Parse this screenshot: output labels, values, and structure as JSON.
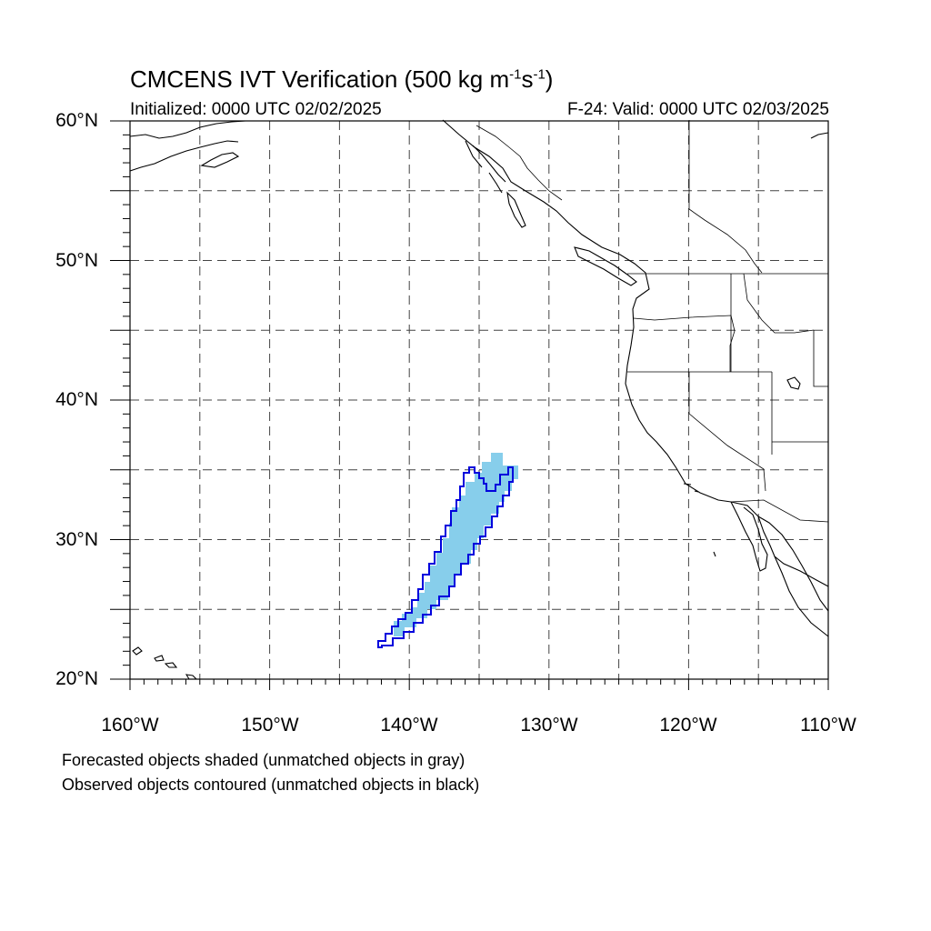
{
  "title": {
    "main": "CMCENS IVT Verification (500 kg m",
    "exp1": "-1",
    "mid": "s",
    "exp2": "-1",
    "end": ")"
  },
  "subtitle": {
    "left": "Initialized: 0000 UTC 02/02/2025",
    "right": "F-24: Valid: 0000 UTC 02/03/2025"
  },
  "map": {
    "lon_range": [
      -160,
      -110
    ],
    "lat_range": [
      20,
      60
    ],
    "lat_labels": [
      "20°N",
      "30°N",
      "40°N",
      "50°N",
      "60°N"
    ],
    "lon_labels": [
      "160°W",
      "150°W",
      "140°W",
      "130°W",
      "120°W",
      "110°W"
    ],
    "gridline_style": "dashed",
    "colors": {
      "forecast_fill": "#87ceeb",
      "observed_contour": "#0000dd",
      "coast": "#000000"
    }
  },
  "captions": {
    "line1": "Forecasted objects shaded (unmatched objects in gray)",
    "line2": "Observed objects contoured (unmatched objects in black)"
  }
}
